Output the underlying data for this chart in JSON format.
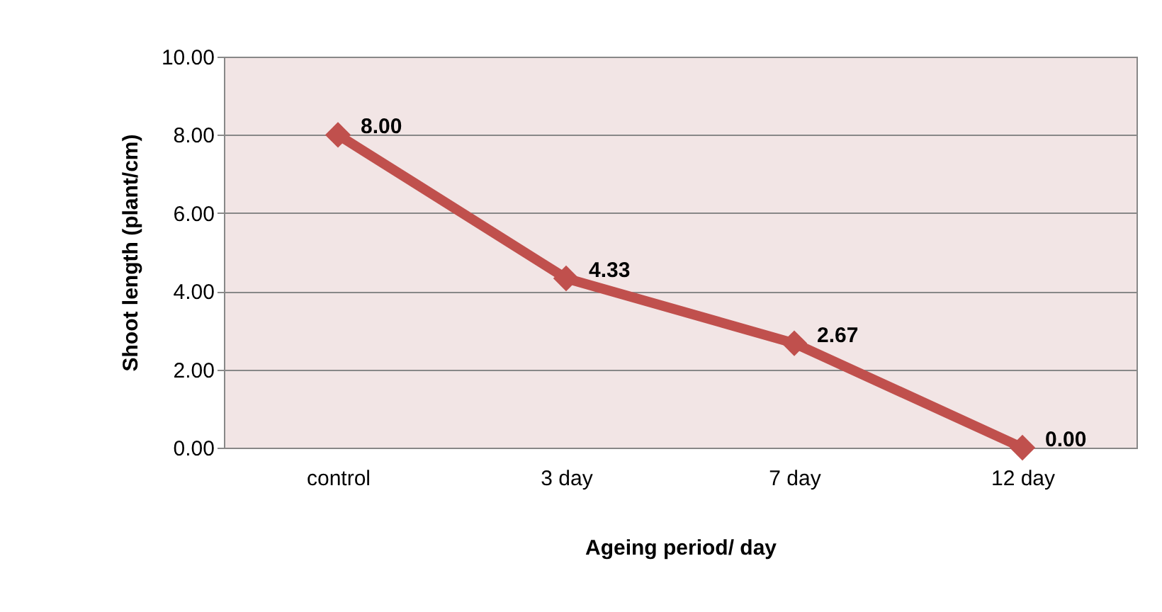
{
  "chart_data": {
    "type": "line",
    "xlabel": "Ageing period/ day",
    "ylabel": "Shoot length (plant/cm)",
    "categories": [
      "control",
      "3 day",
      "7 day",
      "12 day"
    ],
    "series": [
      {
        "color": "#c0504d",
        "values": [
          8.0,
          4.33,
          2.67,
          0.0
        ],
        "value_labels": [
          "8.00",
          "4.33",
          "2.67",
          "0.00"
        ]
      }
    ],
    "ylim": [
      0,
      10
    ],
    "yticks": [
      {
        "value": 0,
        "label": "0.00"
      },
      {
        "value": 2,
        "label": "2.00"
      },
      {
        "value": 4,
        "label": "4.00"
      },
      {
        "value": 6,
        "label": "6.00"
      },
      {
        "value": 8,
        "label": "8.00"
      },
      {
        "value": 10,
        "label": "10.00"
      }
    ],
    "grid": "y",
    "marker": "diamond",
    "line_style": "solid"
  }
}
